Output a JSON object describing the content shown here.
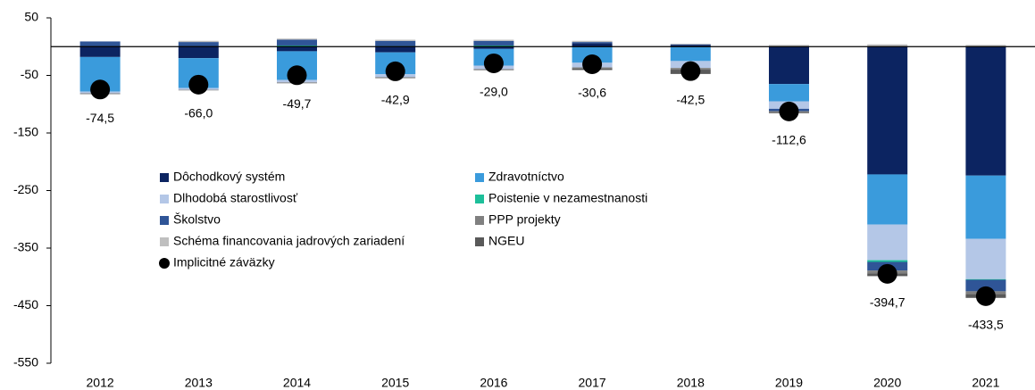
{
  "chart_data": {
    "type": "stacked_bar",
    "categories": [
      "2012",
      "2013",
      "2014",
      "2015",
      "2016",
      "2017",
      "2018",
      "2019",
      "2020",
      "2021"
    ],
    "series": [
      {
        "name": "Dôchodkový systém",
        "color": "#0c2461",
        "values": [
          -18,
          -20,
          -8,
          -10,
          -4,
          6,
          3,
          -65,
          -222,
          -224
        ]
      },
      {
        "name": "Zdravotníctvo",
        "color": "#3a9bdc",
        "values": [
          -60,
          -52,
          -50,
          -38,
          -29,
          -28,
          -25,
          -30,
          -87,
          -110
        ]
      },
      {
        "name": "Dlhodobá starostlivosť",
        "color": "#b4c7e7",
        "values": [
          -3,
          -3,
          -4.2,
          -5,
          -6,
          -8,
          -12,
          -13,
          -62,
          -70
        ]
      },
      {
        "name": "Poistenie v nezamestnanosti",
        "color": "#1dbf9a",
        "values": [
          0,
          0,
          2,
          1,
          2,
          0,
          0,
          0,
          -3,
          -1
        ]
      },
      {
        "name": "Školstvo",
        "color": "#2f5597",
        "values": [
          9,
          8,
          10,
          9,
          8,
          2,
          1,
          -4,
          -15,
          -20
        ]
      },
      {
        "name": "PPP projekty",
        "color": "#808080",
        "values": [
          -1,
          -1,
          -1.5,
          -1.9,
          -2,
          -2,
          -3,
          -2,
          -5,
          -5
        ]
      },
      {
        "name": "Schéma financovania jadrových zariadení",
        "color": "#bfbfbf",
        "values": [
          -1.5,
          2,
          2,
          2,
          2,
          2,
          1,
          3,
          4,
          3
        ]
      },
      {
        "name": "NGEU",
        "color": "#595959",
        "values": [
          0,
          0,
          0,
          0,
          0,
          -2.6,
          -7.5,
          -1.6,
          -4.7,
          -6.5
        ]
      }
    ],
    "dots": {
      "name": "Implicitné záväzky",
      "color": "#000000",
      "values": [
        -74.5,
        -66.0,
        -49.7,
        -42.9,
        -29.0,
        -30.6,
        -42.5,
        -112.6,
        -394.7,
        -433.5
      ],
      "value_labels": [
        "-74,5",
        "-66,0",
        "-49,7",
        "-42,9",
        "-29,0",
        "-30,6",
        "-42,5",
        "-112,6",
        "-394,7",
        "-433,5"
      ]
    },
    "ylim": [
      -550,
      50
    ],
    "yticks": [
      50,
      -50,
      -150,
      -250,
      -350,
      -450,
      -550
    ],
    "grid": false
  }
}
